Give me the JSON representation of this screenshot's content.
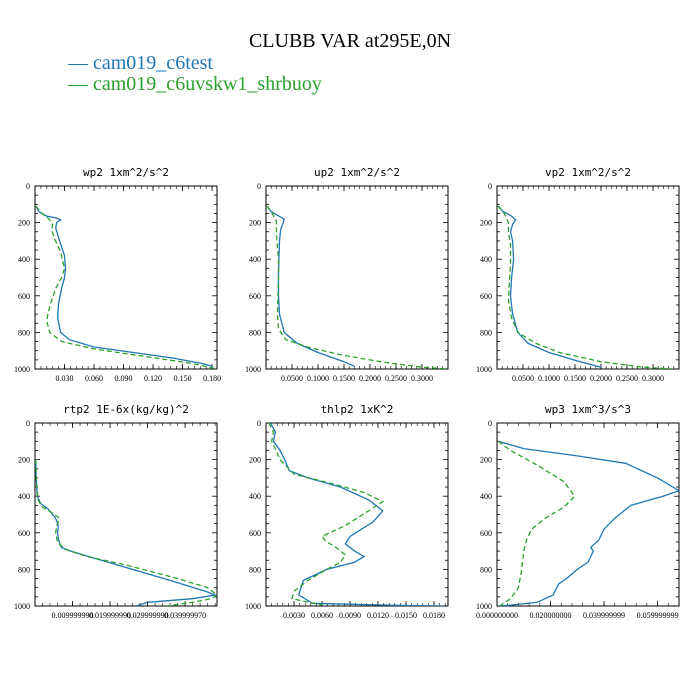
{
  "title": "CLUBB VAR at295E,0N",
  "legend": [
    {
      "label": "— cam019_c6test",
      "color": "#1f77b4"
    },
    {
      "label": "— cam019_c6uvskw1_shrbuoy",
      "color": "#2ca02c"
    }
  ],
  "chart_data": [
    {
      "type": "line",
      "title": "wp2   1xm^2/s^2",
      "xlim": [
        0,
        0.185
      ],
      "ylim": [
        0,
        1000
      ],
      "y_inverted": true,
      "xticks": [
        0.03,
        0.06,
        0.09,
        0.12,
        0.15,
        0.18
      ],
      "xticklabels": [
        "0.030",
        "0.060",
        "0.090",
        "0.120",
        "0.150",
        "0.180"
      ],
      "yticks": [
        0,
        200,
        400,
        600,
        800,
        1000
      ],
      "series": [
        {
          "color": "#1f77b4",
          "dash": "",
          "x": [
            0.001,
            0.004,
            0.012,
            0.022,
            0.026,
            0.022,
            0.021,
            0.025,
            0.03,
            0.031,
            0.03,
            0.027,
            0.024,
            0.023,
            0.026,
            0.035,
            0.06,
            0.1,
            0.14,
            0.17,
            0.18
          ],
          "y": [
            110,
            140,
            165,
            175,
            185,
            200,
            230,
            300,
            380,
            450,
            500,
            560,
            640,
            720,
            800,
            840,
            880,
            910,
            940,
            970,
            985
          ]
        },
        {
          "color": "#2ca02c",
          "dash": "5,3",
          "x": [
            0.001,
            0.006,
            0.014,
            0.018,
            0.017,
            0.02,
            0.026,
            0.03,
            0.027,
            0.021,
            0.016,
            0.013,
            0.012,
            0.015,
            0.027,
            0.06,
            0.11,
            0.16,
            0.185
          ],
          "y": [
            110,
            145,
            180,
            210,
            240,
            290,
            360,
            450,
            500,
            560,
            640,
            700,
            740,
            800,
            850,
            890,
            930,
            970,
            1000
          ]
        }
      ]
    },
    {
      "type": "line",
      "title": "up2   1xm^2/s^2",
      "xlim": [
        0,
        0.35
      ],
      "ylim": [
        0,
        1000
      ],
      "y_inverted": true,
      "xticks": [
        0.05,
        0.1,
        0.15,
        0.2,
        0.25,
        0.3
      ],
      "xticklabels": [
        "0.0500",
        "0.1000",
        "0.1500",
        "0.2000",
        "0.2500",
        "0.3000"
      ],
      "yticks": [
        0,
        200,
        400,
        600,
        800,
        1000
      ],
      "series": [
        {
          "color": "#1f77b4",
          "dash": "",
          "x": [
            0.002,
            0.01,
            0.025,
            0.035,
            0.033,
            0.028,
            0.026,
            0.025,
            0.024,
            0.024,
            0.026,
            0.035,
            0.06,
            0.1,
            0.15,
            0.17
          ],
          "y": [
            110,
            140,
            165,
            180,
            200,
            240,
            300,
            380,
            480,
            600,
            700,
            800,
            860,
            910,
            960,
            985
          ]
        },
        {
          "color": "#2ca02c",
          "dash": "5,3",
          "x": [
            0.002,
            0.012,
            0.02,
            0.02,
            0.021,
            0.024,
            0.024,
            0.023,
            0.022,
            0.024,
            0.038,
            0.08,
            0.14,
            0.22,
            0.3,
            0.35
          ],
          "y": [
            110,
            150,
            190,
            240,
            300,
            400,
            500,
            600,
            700,
            780,
            840,
            880,
            920,
            960,
            990,
            1000
          ]
        }
      ]
    },
    {
      "type": "line",
      "title": "vp2   1xm^2/s^2",
      "xlim": [
        0,
        0.35
      ],
      "ylim": [
        0,
        1000
      ],
      "y_inverted": true,
      "xticks": [
        0.05,
        0.1,
        0.15,
        0.2,
        0.25,
        0.3
      ],
      "xticklabels": [
        "0.0500",
        "0.1000",
        "0.1500",
        "0.2000",
        "0.2500",
        "0.3000"
      ],
      "yticks": [
        0,
        200,
        400,
        600,
        800,
        1000
      ],
      "series": [
        {
          "color": "#1f77b4",
          "dash": "",
          "x": [
            0.002,
            0.012,
            0.028,
            0.036,
            0.03,
            0.026,
            0.03,
            0.032,
            0.028,
            0.026,
            0.03,
            0.04,
            0.06,
            0.1,
            0.16,
            0.2
          ],
          "y": [
            110,
            140,
            165,
            185,
            210,
            250,
            300,
            400,
            500,
            600,
            700,
            800,
            860,
            910,
            960,
            990
          ]
        },
        {
          "color": "#2ca02c",
          "dash": "5,3",
          "x": [
            0.002,
            0.014,
            0.022,
            0.022,
            0.026,
            0.026,
            0.024,
            0.022,
            0.028,
            0.04,
            0.075,
            0.12,
            0.2,
            0.28,
            0.34
          ],
          "y": [
            110,
            150,
            200,
            250,
            320,
            420,
            520,
            620,
            720,
            800,
            860,
            910,
            960,
            990,
            1000
          ]
        }
      ]
    },
    {
      "type": "line",
      "title": "rtp2   1E-6x(kg/kg)^2",
      "xlim": [
        0,
        0.0485
      ],
      "ylim": [
        0,
        1000
      ],
      "y_inverted": true,
      "xticks": [
        0.01,
        0.02,
        0.03,
        0.04
      ],
      "xticklabels": [
        "0.009999990",
        "0.019999990",
        "0.029999990",
        "0.039999970"
      ],
      "yticks": [
        0,
        200,
        400,
        600,
        800,
        1000
      ],
      "series": [
        {
          "color": "#1f77b4",
          "dash": "",
          "x": [
            0.0002,
            0.0003,
            0.0006,
            0.0015,
            0.0035,
            0.0055,
            0.0062,
            0.006,
            0.0063,
            0.007,
            0.0095,
            0.016,
            0.026,
            0.036,
            0.0455,
            0.048,
            0.042,
            0.03,
            0.027
          ],
          "y": [
            200,
            300,
            400,
            440,
            470,
            520,
            560,
            600,
            640,
            680,
            700,
            740,
            800,
            860,
            920,
            940,
            960,
            980,
            1000
          ]
        },
        {
          "color": "#2ca02c",
          "dash": "5,3",
          "x": [
            0.0002,
            0.0004,
            0.0008,
            0.002,
            0.0045,
            0.0065,
            0.0058,
            0.0055,
            0.006,
            0.008,
            0.014,
            0.025,
            0.038,
            0.046,
            0.0485,
            0.047,
            0.042,
            0.035
          ],
          "y": [
            200,
            320,
            420,
            460,
            490,
            520,
            560,
            600,
            650,
            690,
            730,
            780,
            850,
            900,
            940,
            960,
            980,
            1000
          ]
        }
      ]
    },
    {
      "type": "line",
      "title": "thlp2   1xK^2",
      "xlim": [
        0,
        0.0195
      ],
      "ylim": [
        0,
        1000
      ],
      "y_inverted": true,
      "xticks": [
        0.003,
        0.006,
        0.009,
        0.012,
        0.015,
        0.018
      ],
      "xticklabels": [
        "0.0030",
        "0.0060",
        "0.0090",
        "0.0120",
        "0.0150",
        "0.0180"
      ],
      "yticks": [
        0,
        200,
        400,
        600,
        800,
        1000
      ],
      "series": [
        {
          "color": "#1f77b4",
          "dash": "",
          "x": [
            0.0005,
            0.001,
            0.0008,
            0.0015,
            0.002,
            0.0025,
            0.0045,
            0.008,
            0.011,
            0.0125,
            0.0115,
            0.009,
            0.0085,
            0.0095,
            0.0105,
            0.0095,
            0.0065,
            0.004,
            0.0035,
            0.005,
            0.013,
            0.019
          ],
          "y": [
            0,
            50,
            100,
            150,
            200,
            260,
            300,
            350,
            420,
            480,
            540,
            620,
            660,
            700,
            730,
            760,
            800,
            860,
            940,
            985,
            995,
            1000
          ]
        },
        {
          "color": "#2ca02c",
          "dash": "5,3",
          "x": [
            0.0003,
            0.0008,
            0.0006,
            0.001,
            0.0015,
            0.003,
            0.007,
            0.0105,
            0.0125,
            0.011,
            0.0085,
            0.006,
            0.0065,
            0.0075,
            0.0085,
            0.008,
            0.0065,
            0.0045,
            0.003,
            0.0028,
            0.006
          ],
          "y": [
            0,
            50,
            100,
            140,
            200,
            280,
            330,
            380,
            430,
            480,
            560,
            620,
            650,
            680,
            720,
            760,
            800,
            860,
            920,
            960,
            995
          ]
        }
      ]
    },
    {
      "type": "line",
      "title": "wp3   1xm^3/s^3",
      "xlim": [
        0,
        0.068
      ],
      "ylim": [
        0,
        1000
      ],
      "y_inverted": true,
      "xticks": [
        0.0,
        0.02,
        0.04,
        0.06
      ],
      "xticklabels": [
        "0.000000000",
        "0.020000000",
        "0.039999999",
        "0.059999999"
      ],
      "yticks": [
        0,
        200,
        400,
        600,
        800,
        1000
      ],
      "series": [
        {
          "color": "#1f77b4",
          "dash": "",
          "x": [
            0.0005,
            0.01,
            0.03,
            0.048,
            0.06,
            0.068,
            0.062,
            0.05,
            0.044,
            0.04,
            0.038,
            0.035,
            0.036,
            0.034,
            0.03,
            0.026,
            0.023,
            0.021,
            0.015,
            0.005,
            0.0005
          ],
          "y": [
            100,
            140,
            180,
            220,
            300,
            370,
            400,
            450,
            520,
            580,
            640,
            680,
            700,
            760,
            800,
            850,
            880,
            940,
            980,
            995,
            1000
          ]
        },
        {
          "color": "#2ca02c",
          "dash": "5,3",
          "x": [
            0.0005,
            0.005,
            0.015,
            0.025,
            0.029,
            0.025,
            0.018,
            0.013,
            0.011,
            0.01,
            0.0095,
            0.009,
            0.008,
            0.005,
            0.001
          ],
          "y": [
            100,
            150,
            230,
            320,
            400,
            460,
            520,
            580,
            640,
            700,
            760,
            820,
            900,
            960,
            1000
          ]
        }
      ]
    }
  ]
}
